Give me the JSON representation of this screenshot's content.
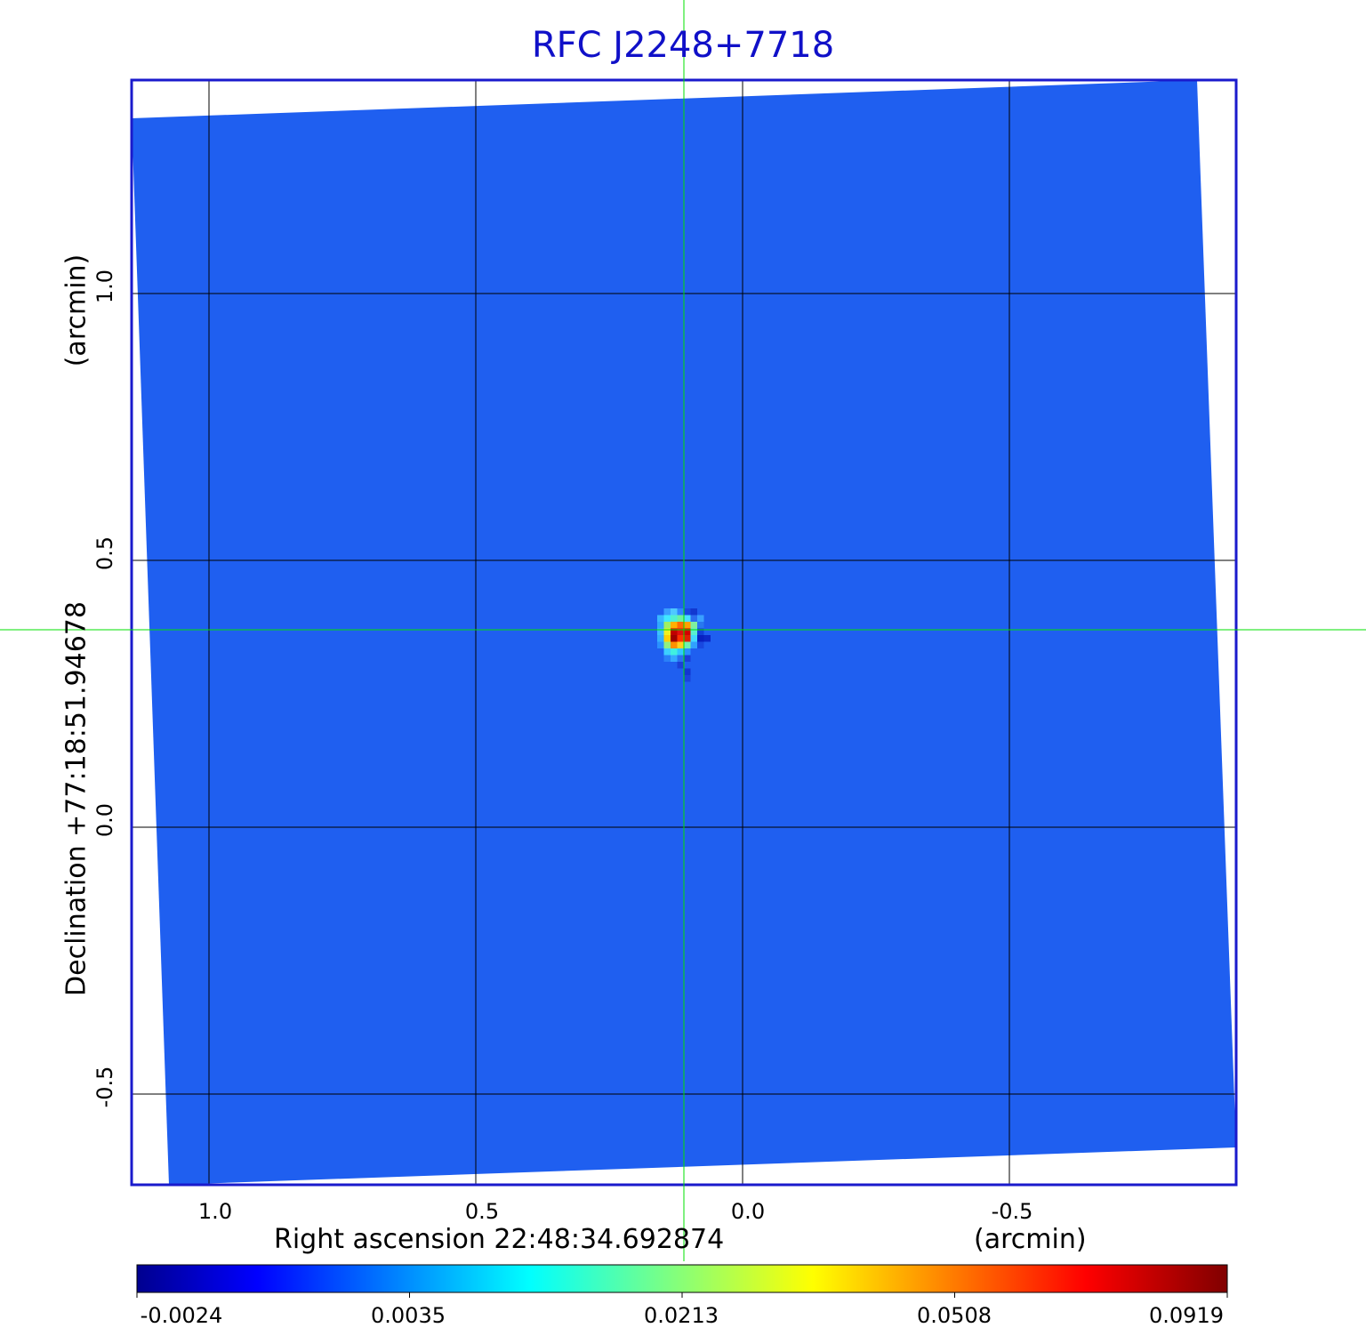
{
  "chart_data": {
    "type": "heatmap",
    "title": "RFC J2248+7718",
    "xlabel": "Right ascension  22:48:34.692874",
    "xunit": "(arcmin)",
    "ylabel": "Declination  +77:18:51.94678",
    "yunit": "(arcmin)",
    "x_ticks": [
      "1.0",
      "0.5",
      "0.0",
      "-0.5"
    ],
    "x_tick_values": [
      1.0,
      0.5,
      0.0,
      -0.5
    ],
    "y_ticks": [
      "1.0",
      "0.5",
      "0.0",
      "-0.5"
    ],
    "y_tick_values": [
      1.0,
      0.5,
      0.0,
      -0.5
    ],
    "xlim": [
      1.145,
      -0.925
    ],
    "ylim": [
      -0.67,
      1.4
    ],
    "x_direction": "decreasing to the right",
    "grid": true,
    "crosshair": {
      "x": 0.11,
      "y": 0.37,
      "color": "#00e000"
    },
    "source_peak": {
      "x": 0.11,
      "y": 0.36,
      "value": 0.0919
    },
    "colorbar": {
      "ticks": [
        "-0.0024",
        "0.0035",
        "0.0213",
        "0.0508",
        "0.0919"
      ],
      "values": [
        -0.0024,
        0.0035,
        0.0213,
        0.0508,
        0.0919
      ],
      "colormap": "jet",
      "background_value_color": "#1f5ff0"
    },
    "colors": {
      "title": "#1010c8",
      "frame": "#1a1acc",
      "background_field": "#1f5ff0",
      "grid": "#000000"
    }
  }
}
